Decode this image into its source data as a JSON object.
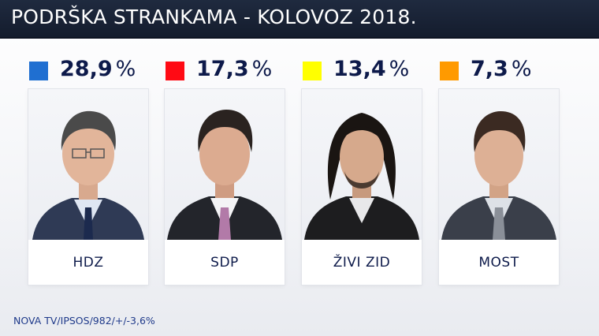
{
  "header": {
    "title": "PODRŠKA STRANKAMA - KOLOVOZ 2018."
  },
  "parties": [
    {
      "name": "HDZ",
      "percent": "28,9",
      "percent_sign": "%",
      "color": "#1f6fd1"
    },
    {
      "name": "SDP",
      "percent": "17,3",
      "percent_sign": "%",
      "color": "#ff0a14"
    },
    {
      "name": "ŽIVI ZID",
      "percent": "13,4",
      "percent_sign": "%",
      "color": "#ffff00"
    },
    {
      "name": "MOST",
      "percent": "7,3",
      "percent_sign": "%",
      "color": "#ff9a00"
    }
  ],
  "footer": {
    "source": "NOVA TV/IPSOS/982/+/-3,6%"
  }
}
